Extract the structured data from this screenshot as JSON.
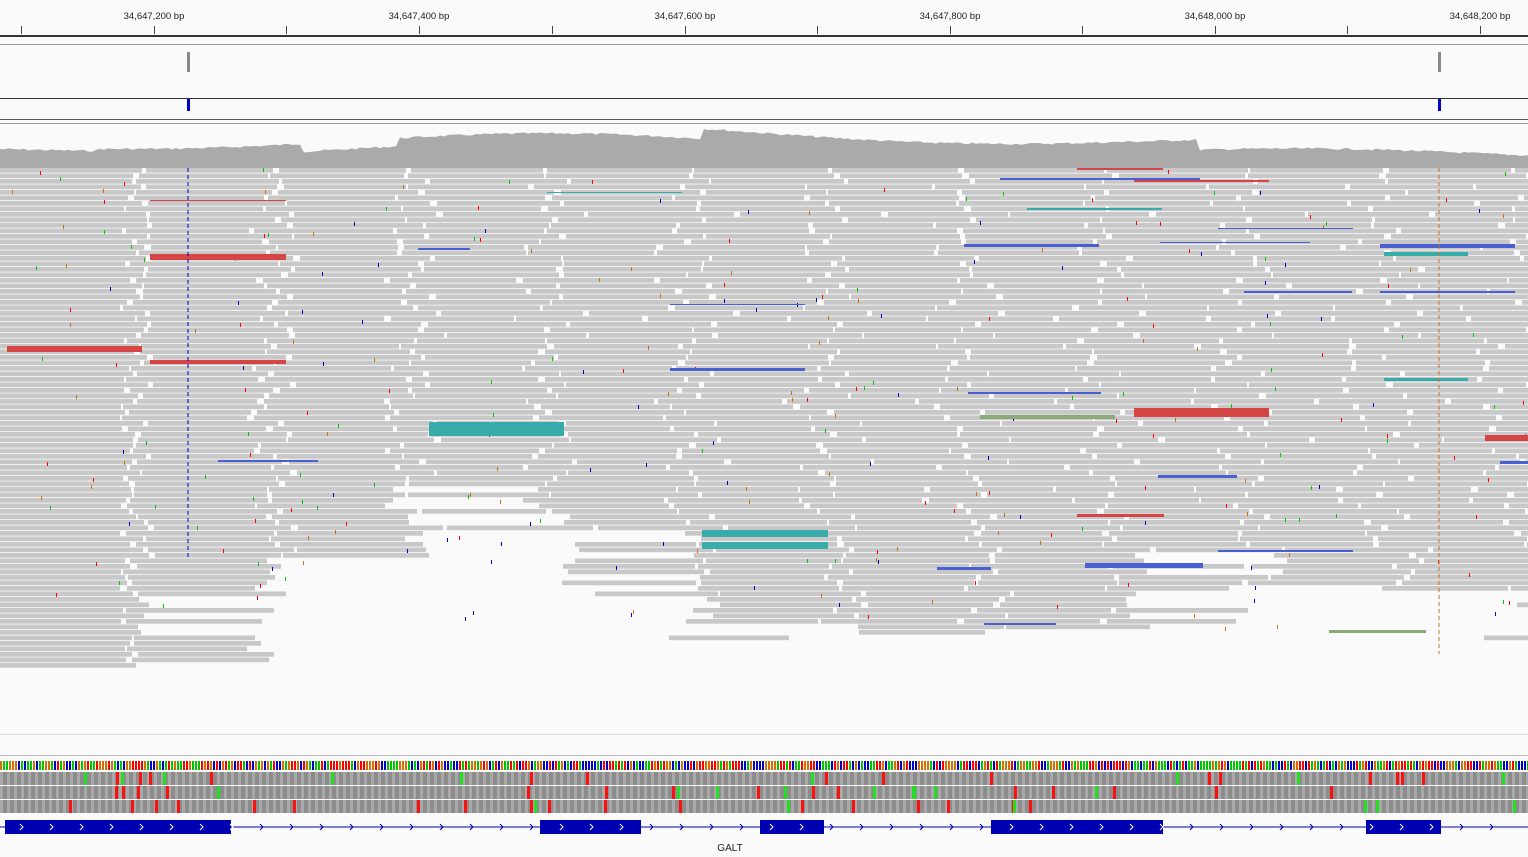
{
  "ruler": {
    "labels": [
      "34,647,200 bp",
      "34,647,400 bp",
      "34,647,600 bp",
      "34,647,800 bp",
      "34,648,000 bp",
      "34,648,200 bp"
    ]
  },
  "gene": {
    "name": "GALT"
  },
  "colors": {
    "read_gray": "#c8c8c8",
    "gene_blue": "#0000b3",
    "coverage_gray": "#aaaaaa",
    "insert_red": "#d64545",
    "insert_blue": "#4a5fd0",
    "insert_teal": "#3aabab",
    "insert_green": "#8aaa78",
    "base_A": "#00c800",
    "base_C": "#0000c8",
    "base_G": "#d17105",
    "base_T": "#ff0000"
  },
  "icons": {
    "strand_arrow": "chevron-right-icon"
  }
}
